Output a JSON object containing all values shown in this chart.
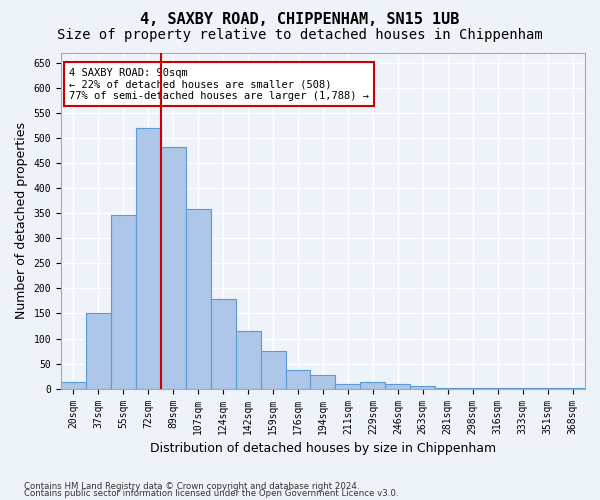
{
  "title": "4, SAXBY ROAD, CHIPPENHAM, SN15 1UB",
  "subtitle": "Size of property relative to detached houses in Chippenham",
  "xlabel": "Distribution of detached houses by size in Chippenham",
  "ylabel": "Number of detached properties",
  "categories": [
    "20sqm",
    "37sqm",
    "55sqm",
    "72sqm",
    "89sqm",
    "107sqm",
    "124sqm",
    "142sqm",
    "159sqm",
    "176sqm",
    "194sqm",
    "211sqm",
    "229sqm",
    "246sqm",
    "263sqm",
    "281sqm",
    "298sqm",
    "316sqm",
    "333sqm",
    "351sqm",
    "368sqm"
  ],
  "values": [
    13,
    150,
    346,
    519,
    482,
    358,
    178,
    115,
    75,
    38,
    28,
    10,
    13,
    10,
    5,
    2,
    2,
    1,
    1,
    1,
    1
  ],
  "bar_color": "#aec6e8",
  "bar_edge_color": "#5b9bd5",
  "highlight_index": 4,
  "highlight_line_color": "#cc0000",
  "annotation_text": "4 SAXBY ROAD: 90sqm\n← 22% of detached houses are smaller (508)\n77% of semi-detached houses are larger (1,788) →",
  "annotation_box_color": "#ffffff",
  "annotation_box_edge_color": "#cc0000",
  "ylim": [
    0,
    670
  ],
  "yticks": [
    0,
    50,
    100,
    150,
    200,
    250,
    300,
    350,
    400,
    450,
    500,
    550,
    600,
    650
  ],
  "footer_line1": "Contains HM Land Registry data © Crown copyright and database right 2024.",
  "footer_line2": "Contains public sector information licensed under the Open Government Licence v3.0.",
  "background_color": "#eef2f9",
  "grid_color": "#ffffff",
  "title_fontsize": 11,
  "subtitle_fontsize": 10,
  "tick_fontsize": 7,
  "ylabel_fontsize": 9,
  "xlabel_fontsize": 9
}
